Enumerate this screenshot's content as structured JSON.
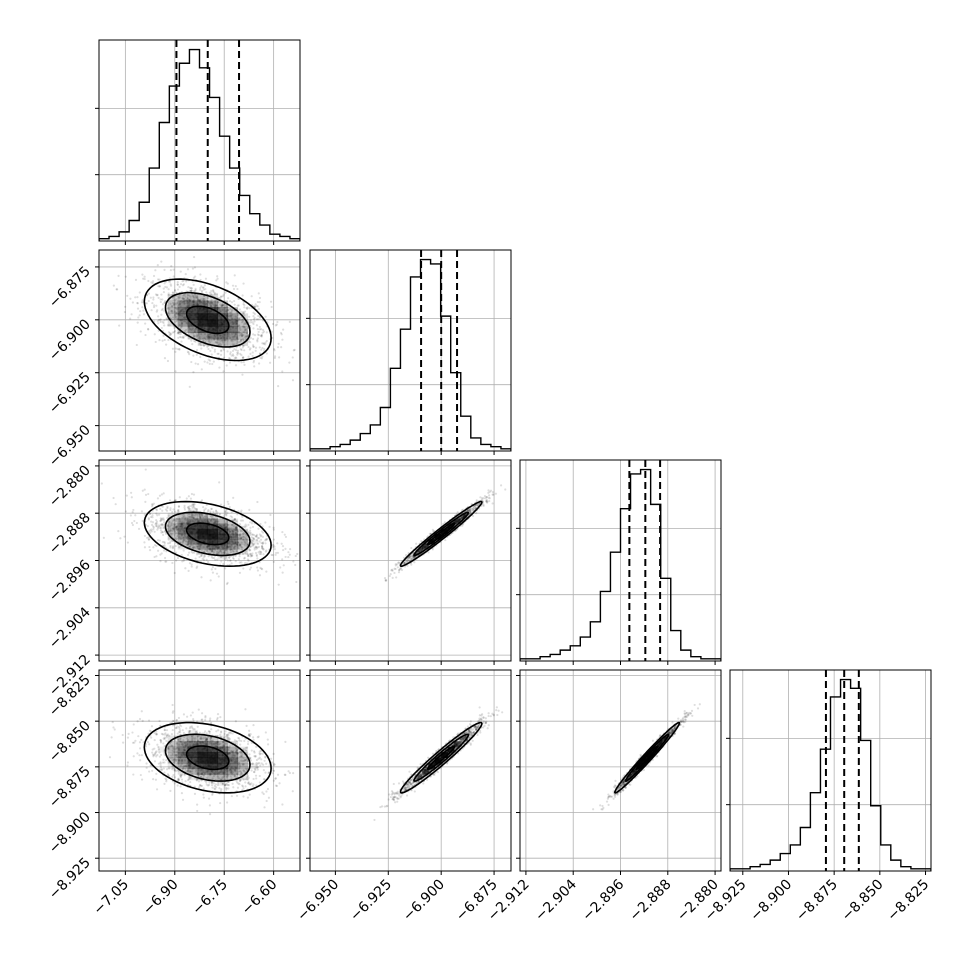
{
  "chart_data": {
    "type": "corner",
    "grid": true,
    "parameters": [
      {
        "mean": -6.8,
        "sd": 0.095,
        "q": [
          -6.895,
          -6.8,
          -6.705
        ],
        "range": [
          -7.13,
          -6.52
        ],
        "ticks": [
          -7.05,
          -6.9,
          -6.75,
          -6.6
        ],
        "tick_labels": [
          "−7.05",
          "−6.90",
          "−6.75",
          "−6.60"
        ]
      },
      {
        "mean": -6.9,
        "sd": 0.0095,
        "q": [
          -6.9095,
          -6.9,
          -6.8925
        ],
        "range": [
          -6.962,
          -6.867
        ],
        "ticks": [
          -6.95,
          -6.925,
          -6.9,
          -6.875
        ],
        "tick_labels": [
          "−6.950",
          "−6.925",
          "−6.900",
          "−6.875"
        ]
      },
      {
        "mean": -2.8915,
        "sd": 0.0027,
        "q": [
          -2.8945,
          -2.8918,
          -2.8893
        ],
        "range": [
          -2.913,
          -2.879
        ],
        "ticks": [
          -2.912,
          -2.904,
          -2.896,
          -2.888,
          -2.88
        ],
        "tick_labels": [
          "−2.912",
          "−2.904",
          "−2.896",
          "−2.888",
          "−2.880"
        ]
      },
      {
        "mean": -8.87,
        "sd": 0.0095,
        "q": [
          -8.8795,
          -8.8695,
          -8.8615
        ],
        "range": [
          -8.932,
          -8.822
        ],
        "ticks": [
          -8.925,
          -8.9,
          -8.875,
          -8.85,
          -8.825
        ],
        "tick_labels": [
          "−8.925",
          "−8.900",
          "−8.875",
          "−8.850",
          "−8.825"
        ]
      }
    ],
    "correlations": [
      [
        1.0,
        -0.45,
        -0.35,
        -0.3
      ],
      [
        -0.45,
        1.0,
        0.98,
        0.97
      ],
      [
        -0.35,
        0.98,
        1.0,
        0.985
      ],
      [
        -0.3,
        0.97,
        0.985,
        1.0
      ]
    ],
    "histograms": [
      [
        1,
        2,
        4,
        9,
        17,
        32,
        52,
        68,
        78,
        84,
        76,
        63,
        46,
        32,
        20,
        12,
        7,
        3,
        2,
        1
      ],
      [
        1,
        1,
        2,
        3,
        5,
        8,
        12,
        20,
        38,
        56,
        80,
        88,
        86,
        62,
        36,
        16,
        6,
        3,
        2,
        1
      ],
      [
        1,
        1,
        2,
        3,
        5,
        7,
        11,
        18,
        32,
        50,
        70,
        86,
        88,
        72,
        38,
        14,
        5,
        2,
        1,
        1
      ],
      [
        1,
        1,
        2,
        3,
        5,
        8,
        12,
        20,
        36,
        56,
        80,
        88,
        84,
        60,
        30,
        12,
        5,
        2,
        1,
        1
      ]
    ],
    "contour_levels_sigma": [
      0.5,
      1.0,
      1.5
    ]
  }
}
